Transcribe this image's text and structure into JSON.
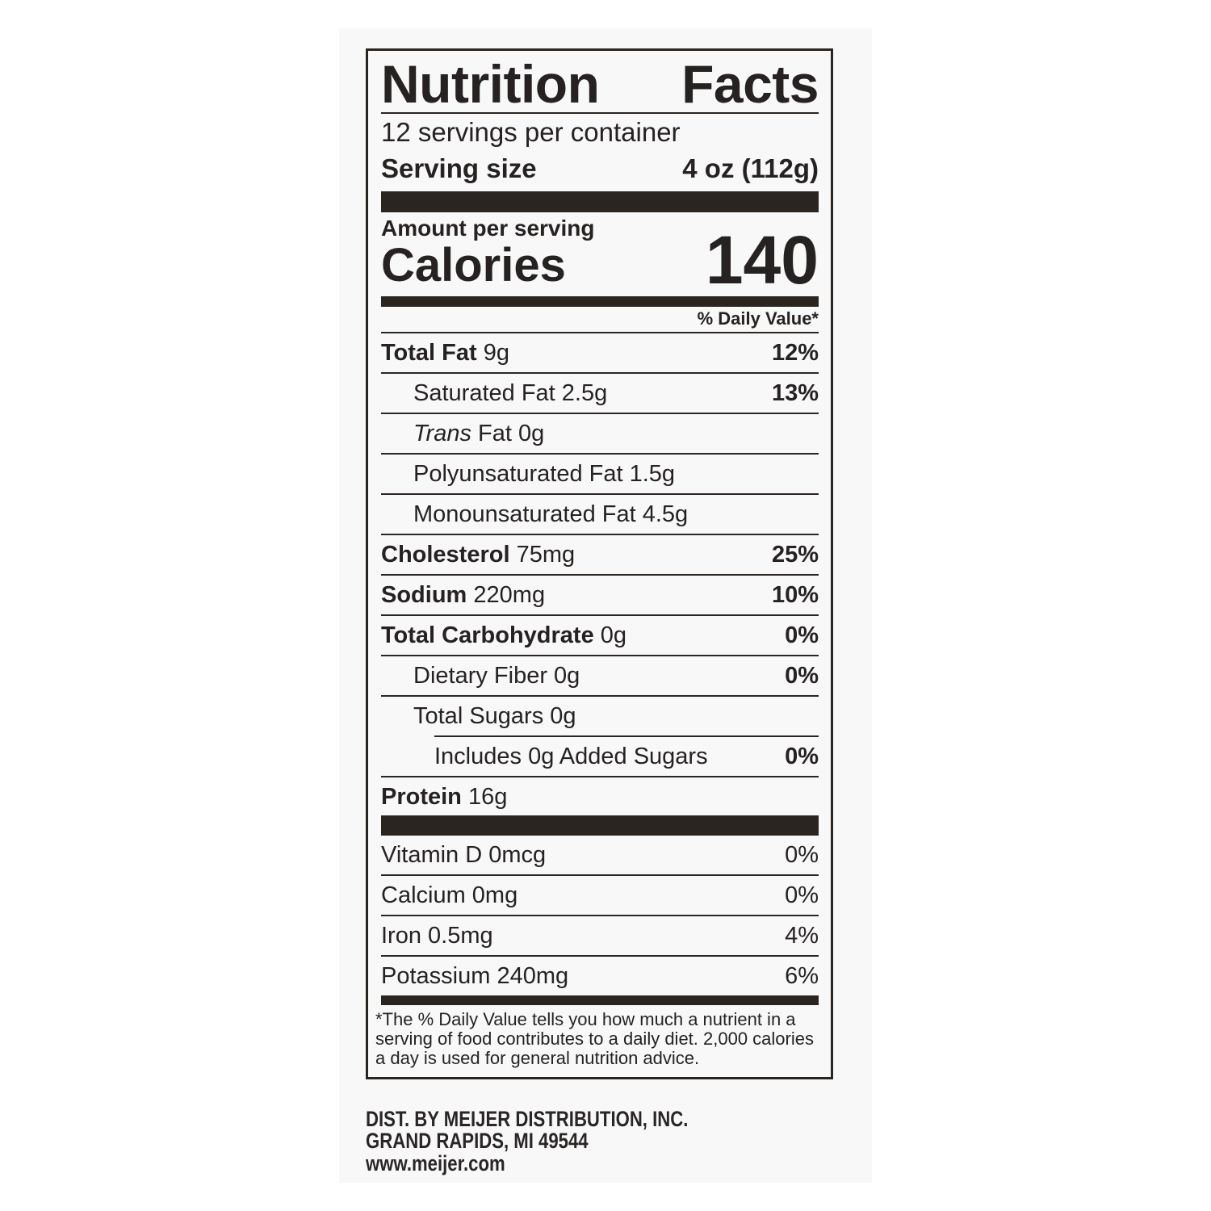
{
  "label": {
    "title_word1": "Nutrition",
    "title_word2": "Facts",
    "servings_per_container": "12 servings per container",
    "serving_size_label": "Serving size",
    "serving_size_value": "4 oz (112g)",
    "amount_per_serving": "Amount per serving",
    "calories_label": "Calories",
    "calories_value": "140",
    "daily_value_header": "% Daily Value*",
    "nutrients": [
      {
        "label": "Total Fat",
        "amount": "9g",
        "dv": "12%",
        "level": 0
      },
      {
        "label": "",
        "amount": "Saturated Fat 2.5g",
        "dv": "13%",
        "level": 1
      },
      {
        "label": "",
        "italic": "Trans",
        "amount": "Fat 0g",
        "dv": "",
        "level": 1
      },
      {
        "label": "",
        "amount": "Polyunsaturated Fat 1.5g",
        "dv": "",
        "level": 1
      },
      {
        "label": "",
        "amount": "Monounsaturated Fat 4.5g",
        "dv": "",
        "level": 1
      },
      {
        "label": "Cholesterol",
        "amount": "75mg",
        "dv": "25%",
        "level": 0
      },
      {
        "label": "Sodium",
        "amount": "220mg",
        "dv": "10%",
        "level": 0
      },
      {
        "label": "Total Carbohydrate",
        "amount": "0g",
        "dv": "0%",
        "level": 0
      },
      {
        "label": "",
        "amount": "Dietary Fiber 0g",
        "dv": "0%",
        "level": 1
      },
      {
        "label": "",
        "amount": "Total Sugars 0g",
        "dv": "",
        "level": 1
      },
      {
        "label": "",
        "amount": "Includes 0g Added Sugars",
        "dv": "0%",
        "level": 2
      },
      {
        "label": "Protein",
        "amount": "16g",
        "dv": "",
        "level": 0
      }
    ],
    "vitamins": [
      {
        "amount": "Vitamin D 0mcg",
        "dv": "0%"
      },
      {
        "amount": "Calcium 0mg",
        "dv": "0%"
      },
      {
        "amount": "Iron 0.5mg",
        "dv": "4%"
      },
      {
        "amount": "Potassium 240mg",
        "dv": "6%"
      }
    ],
    "footnote": "*The % Daily Value tells you how much a nutrient in a serving of food contributes to a daily diet. 2,000 calories a day is used for general nutrition advice."
  },
  "distributor": {
    "line1": "DIST. BY MEIJER DISTRIBUTION, INC.",
    "line2": "GRAND RAPIDS, MI 49544",
    "website": "www.meijer.com"
  }
}
